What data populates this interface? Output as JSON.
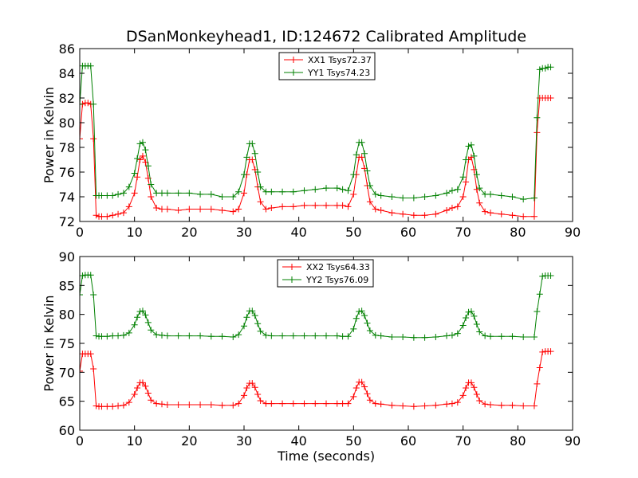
{
  "figure": {
    "title": "DSanMonkeyhead1, ID:124672 Calibrated Amplitude",
    "xlabel": "Time (seconds)"
  },
  "colors": {
    "xx": "#ff0000",
    "yy": "#008000",
    "axes": "#000000",
    "background": "#ffffff"
  },
  "chart_data": [
    {
      "type": "line",
      "title": "DSanMonkeyhead1, ID:124672 Calibrated Amplitude",
      "xlabel": "",
      "ylabel": "Power in Kelvin",
      "xlim": [
        0,
        90
      ],
      "ylim": [
        72,
        86
      ],
      "xticks": [
        0,
        10,
        20,
        30,
        40,
        50,
        60,
        70,
        80,
        90
      ],
      "yticks": [
        72,
        74,
        76,
        78,
        80,
        82,
        84,
        86
      ],
      "grid": false,
      "legend_position": "top-center",
      "marker": "+",
      "series": [
        {
          "name": "XX1 Tsys72.37",
          "color": "#ff0000",
          "x": [
            0,
            0.5,
            1,
            1.5,
            2,
            2.5,
            3,
            3.5,
            4,
            5,
            6,
            7,
            8,
            9,
            10,
            10.5,
            11,
            11.5,
            12,
            12.5,
            13,
            14,
            15,
            16,
            18,
            20,
            22,
            24,
            26,
            28,
            29,
            30,
            30.5,
            31,
            31.5,
            32,
            32.5,
            33,
            34,
            35,
            37,
            39,
            41,
            43,
            45,
            47,
            48,
            49,
            50,
            50.5,
            51,
            51.5,
            52,
            52.5,
            53,
            54,
            55,
            57,
            59,
            61,
            63,
            65,
            67,
            68,
            69,
            70,
            70.5,
            71,
            71.5,
            72,
            72.5,
            73,
            74,
            75,
            77,
            79,
            81,
            83,
            83.5,
            84,
            84.5,
            85,
            85.5,
            86
          ],
          "y": [
            78.7,
            81.5,
            81.6,
            81.6,
            81.5,
            78.7,
            72.5,
            72.4,
            72.4,
            72.4,
            72.5,
            72.6,
            72.7,
            73.2,
            74.3,
            75.6,
            77.0,
            77.3,
            76.8,
            75.5,
            74.0,
            73.1,
            73.0,
            73.0,
            72.9,
            73.0,
            73.0,
            73.0,
            72.9,
            72.8,
            73.0,
            74.3,
            75.8,
            77.0,
            77.0,
            76.2,
            74.8,
            73.6,
            73.0,
            73.1,
            73.2,
            73.2,
            73.3,
            73.3,
            73.3,
            73.3,
            73.3,
            73.2,
            74.2,
            75.8,
            77.2,
            77.2,
            76.3,
            74.9,
            73.6,
            73.0,
            72.9,
            72.7,
            72.6,
            72.5,
            72.5,
            72.6,
            72.9,
            73.1,
            73.2,
            74.0,
            75.2,
            77.0,
            77.2,
            76.2,
            74.6,
            73.5,
            72.8,
            72.7,
            72.6,
            72.5,
            72.4,
            72.4,
            79.2,
            82.0,
            82.0,
            82.0,
            82.0,
            82.0
          ]
        },
        {
          "name": "YY1 Tsys74.23",
          "color": "#008000",
          "x": [
            0,
            0.5,
            1,
            1.5,
            2,
            2.5,
            3,
            3.5,
            4,
            5,
            6,
            7,
            8,
            9,
            10,
            10.5,
            11,
            11.5,
            12,
            12.5,
            13,
            14,
            15,
            16,
            18,
            20,
            22,
            24,
            26,
            28,
            29,
            30,
            30.5,
            31,
            31.5,
            32,
            32.5,
            33,
            34,
            35,
            37,
            39,
            41,
            43,
            45,
            47,
            48,
            49,
            50,
            50.5,
            51,
            51.5,
            52,
            52.5,
            53,
            54,
            55,
            57,
            59,
            61,
            63,
            65,
            67,
            68,
            69,
            70,
            70.5,
            71,
            71.5,
            72,
            72.5,
            73,
            74,
            75,
            77,
            79,
            81,
            83,
            83.5,
            84,
            84.5,
            85,
            85.5,
            86
          ],
          "y": [
            81.5,
            84.6,
            84.6,
            84.6,
            84.6,
            81.5,
            74.1,
            74.1,
            74.1,
            74.1,
            74.1,
            74.2,
            74.3,
            74.8,
            75.9,
            77.1,
            78.3,
            78.4,
            77.8,
            76.5,
            75.0,
            74.3,
            74.3,
            74.3,
            74.3,
            74.3,
            74.2,
            74.2,
            74.0,
            74.0,
            74.4,
            75.8,
            77.2,
            78.3,
            78.3,
            77.5,
            76.0,
            74.8,
            74.4,
            74.4,
            74.4,
            74.4,
            74.5,
            74.6,
            74.7,
            74.7,
            74.6,
            74.5,
            75.8,
            77.4,
            78.4,
            78.4,
            77.5,
            76.1,
            74.9,
            74.2,
            74.1,
            74.0,
            73.9,
            73.9,
            74.0,
            74.1,
            74.3,
            74.5,
            74.6,
            75.6,
            77.0,
            78.1,
            78.2,
            77.3,
            75.8,
            74.7,
            74.2,
            74.2,
            74.1,
            74.0,
            73.8,
            73.9,
            80.4,
            84.3,
            84.4,
            84.4,
            84.5,
            84.5
          ]
        }
      ]
    },
    {
      "type": "line",
      "title": "",
      "xlabel": "Time (seconds)",
      "ylabel": "Power in Kelvin",
      "xlim": [
        0,
        90
      ],
      "ylim": [
        60,
        90
      ],
      "xticks": [
        0,
        10,
        20,
        30,
        40,
        50,
        60,
        70,
        80,
        90
      ],
      "yticks": [
        60,
        65,
        70,
        75,
        80,
        85,
        90
      ],
      "grid": false,
      "legend_position": "top-center",
      "marker": "+",
      "series": [
        {
          "name": "XX2 Tsys64.33",
          "color": "#ff0000",
          "x": [
            0,
            0.5,
            1,
            1.5,
            2,
            2.5,
            3,
            3.5,
            4,
            5,
            6,
            7,
            8,
            9,
            10,
            10.5,
            11,
            11.5,
            12,
            12.5,
            13,
            14,
            15,
            16,
            18,
            20,
            22,
            24,
            26,
            28,
            29,
            30,
            30.5,
            31,
            31.5,
            32,
            32.5,
            33,
            34,
            35,
            37,
            39,
            41,
            43,
            45,
            47,
            48,
            49,
            50,
            50.5,
            51,
            51.5,
            52,
            52.5,
            53,
            54,
            55,
            57,
            59,
            61,
            63,
            65,
            67,
            68,
            69,
            70,
            70.5,
            71,
            71.5,
            72,
            72.5,
            73,
            74,
            75,
            77,
            79,
            81,
            83,
            83.5,
            84,
            84.5,
            85,
            85.5,
            86
          ],
          "y": [
            70.2,
            73.2,
            73.2,
            73.2,
            73.2,
            70.6,
            64.2,
            64.1,
            64.1,
            64.1,
            64.1,
            64.2,
            64.3,
            64.8,
            66.2,
            67.3,
            68.2,
            68.2,
            67.6,
            66.4,
            65.2,
            64.6,
            64.5,
            64.4,
            64.4,
            64.4,
            64.4,
            64.4,
            64.3,
            64.3,
            64.6,
            66.0,
            67.3,
            68.1,
            68.1,
            67.4,
            66.2,
            65.1,
            64.6,
            64.6,
            64.6,
            64.6,
            64.6,
            64.6,
            64.6,
            64.6,
            64.6,
            64.6,
            65.8,
            67.3,
            68.3,
            68.3,
            67.5,
            66.3,
            65.2,
            64.6,
            64.5,
            64.3,
            64.2,
            64.1,
            64.2,
            64.3,
            64.5,
            64.6,
            64.8,
            66.0,
            67.3,
            68.2,
            68.2,
            67.4,
            66.2,
            65.1,
            64.5,
            64.4,
            64.3,
            64.3,
            64.2,
            64.2,
            68.0,
            70.8,
            73.5,
            73.6,
            73.6,
            73.6
          ]
        },
        {
          "name": "YY2 Tsys76.09",
          "color": "#008000",
          "x": [
            0,
            0.5,
            1,
            1.5,
            2,
            2.5,
            3,
            3.5,
            4,
            5,
            6,
            7,
            8,
            9,
            10,
            10.5,
            11,
            11.5,
            12,
            12.5,
            13,
            14,
            15,
            16,
            18,
            20,
            22,
            24,
            26,
            28,
            29,
            30,
            30.5,
            31,
            31.5,
            32,
            32.5,
            33,
            34,
            35,
            37,
            39,
            41,
            43,
            45,
            47,
            48,
            49,
            50,
            50.5,
            51,
            51.5,
            52,
            52.5,
            53,
            54,
            55,
            57,
            59,
            61,
            63,
            65,
            67,
            68,
            69,
            70,
            70.5,
            71,
            71.5,
            72,
            72.5,
            73,
            74,
            75,
            77,
            79,
            81,
            83,
            83.5,
            84,
            84.5,
            85,
            85.5,
            86
          ],
          "y": [
            83.4,
            86.7,
            86.8,
            86.8,
            86.8,
            83.4,
            76.3,
            76.2,
            76.2,
            76.2,
            76.3,
            76.3,
            76.4,
            76.8,
            78.2,
            79.5,
            80.5,
            80.6,
            79.9,
            78.6,
            77.3,
            76.5,
            76.4,
            76.3,
            76.3,
            76.3,
            76.3,
            76.2,
            76.2,
            76.1,
            76.5,
            78.0,
            79.5,
            80.6,
            80.6,
            79.8,
            78.4,
            77.1,
            76.4,
            76.3,
            76.3,
            76.3,
            76.3,
            76.3,
            76.3,
            76.3,
            76.2,
            76.2,
            77.5,
            79.3,
            80.5,
            80.6,
            79.8,
            78.5,
            77.2,
            76.4,
            76.3,
            76.1,
            76.1,
            76.0,
            76.0,
            76.1,
            76.3,
            76.4,
            76.7,
            78.1,
            79.4,
            80.4,
            80.5,
            79.7,
            78.3,
            77.0,
            76.3,
            76.2,
            76.2,
            76.2,
            76.1,
            76.1,
            80.5,
            83.5,
            86.6,
            86.7,
            86.7,
            86.7
          ]
        }
      ]
    }
  ]
}
